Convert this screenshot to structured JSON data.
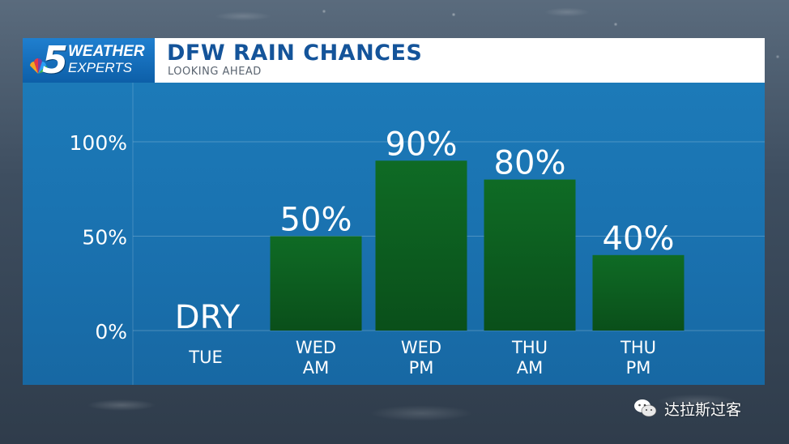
{
  "header": {
    "logo_number": "5",
    "logo_line1": "WEATHER",
    "logo_line2": "EXPERTS",
    "title": "DFW RAIN CHANCES",
    "subtitle": "LOOKING AHEAD"
  },
  "chart_data": {
    "type": "bar",
    "title": "DFW RAIN CHANCES",
    "subtitle": "LOOKING AHEAD",
    "categories": [
      [
        "TUE"
      ],
      [
        "WED",
        "AM"
      ],
      [
        "WED",
        "PM"
      ],
      [
        "THU",
        "AM"
      ],
      [
        "THU",
        "PM"
      ]
    ],
    "values": [
      0,
      50,
      90,
      80,
      40
    ],
    "data_labels": [
      "DRY",
      "50%",
      "90%",
      "80%",
      "40%"
    ],
    "y_ticks": [
      0,
      50,
      100
    ],
    "y_tick_labels": [
      "0%",
      "50%",
      "100%"
    ],
    "ylim": [
      0,
      100
    ],
    "grid": true,
    "bar_color": "#0f6b25",
    "bar_color_dark": "#0a4f1a",
    "background_color": "#1a72b0"
  },
  "watermark": {
    "text": "达拉斯过客",
    "icon": "wechat-icon"
  },
  "colors": {
    "title": "#14549a",
    "logo_bg": "#1672bd"
  }
}
